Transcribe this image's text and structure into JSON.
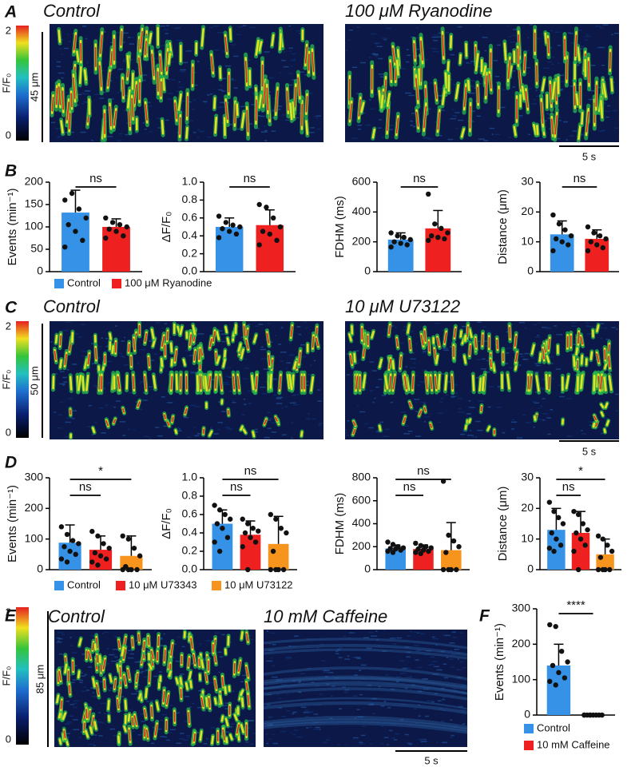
{
  "kymographs": [
    {
      "panel": "A",
      "titles": [
        "Control",
        "100 μM Ryanodine"
      ],
      "colorbar_label": "F/F₀",
      "clim": [
        0,
        2
      ],
      "colorbar_ticks": [
        0,
        2
      ],
      "length_scale": "45 μm",
      "time_scale": "5 s"
    },
    {
      "panel": "C",
      "titles": [
        "Control",
        "10 μM U73122"
      ],
      "colorbar_label": "F/F₀",
      "clim": [
        0,
        2
      ],
      "colorbar_ticks": [
        0,
        2
      ],
      "length_scale": "50 μm",
      "time_scale": "5 s"
    },
    {
      "panel": "E",
      "titles": [
        "Control",
        "10 mM Caffeine"
      ],
      "colorbar_label": "F/F₀",
      "clim": [
        0,
        2
      ],
      "colorbar_ticks": [
        0,
        2
      ],
      "length_scale": "85 μm",
      "time_scale": "5 s"
    }
  ],
  "chart_data": [
    {
      "type": "bar",
      "panel": "B",
      "series": [
        {
          "name": "Control",
          "color": "#3592e6",
          "values": [
            132,
            0.5,
            215,
            12.5
          ],
          "errors": [
            50,
            0.1,
            45,
            4.5
          ],
          "points": [
            [
              160,
              175,
              140,
              120,
              105,
              90,
              70,
              55
            ],
            [
              0.62,
              0.55,
              0.52,
              0.5,
              0.48,
              0.45,
              0.42,
              0.38
            ],
            [
              260,
              240,
              230,
              215,
              200,
              190,
              180,
              165
            ],
            [
              19,
              16,
              14,
              12,
              11,
              10,
              9,
              7
            ]
          ]
        },
        {
          "name": "100 μM Ryanodine",
          "color": "#ee2020",
          "values": [
            100,
            0.52,
            290,
            11
          ],
          "errors": [
            18,
            0.17,
            120,
            3
          ],
          "points": [
            [
              120,
              110,
              105,
              100,
              95,
              90,
              80,
              75
            ],
            [
              0.75,
              0.72,
              0.6,
              0.5,
              0.45,
              0.42,
              0.35,
              0.3
            ],
            [
              520,
              320,
              290,
              260,
              240,
              230,
              220,
              210
            ],
            [
              15,
              13,
              12,
              11,
              10,
              9,
              8,
              7
            ]
          ]
        }
      ],
      "panels": [
        {
          "ylabel": "Events (min⁻¹)",
          "ylim": [
            0,
            200
          ],
          "yticks": [
            0,
            50,
            100,
            150,
            200
          ],
          "significance": [
            "ns"
          ]
        },
        {
          "ylabel": "ΔF/F₀",
          "ylim": [
            0,
            1
          ],
          "yticks": [
            {
              "value": 0,
              "label": "0.0"
            },
            {
              "value": 0.2,
              "label": "0.2"
            },
            {
              "value": 0.4,
              "label": "0.4"
            },
            {
              "value": 0.6,
              "label": "0.6"
            },
            {
              "value": 0.8,
              "label": "0.8"
            },
            {
              "value": 1,
              "label": "1.0"
            }
          ],
          "significance": [
            "ns"
          ]
        },
        {
          "ylabel": "FDHM (ms)",
          "ylim": [
            0,
            600
          ],
          "yticks": [
            0,
            200,
            400,
            600
          ],
          "significance": [
            "ns"
          ]
        },
        {
          "ylabel": "Distance (μm)",
          "ylim": [
            0,
            30
          ],
          "yticks": [
            0,
            10,
            20,
            30
          ],
          "significance": [
            "ns"
          ]
        }
      ]
    },
    {
      "type": "bar",
      "panel": "D",
      "series": [
        {
          "name": "Control",
          "color": "#3592e6",
          "values": [
            88,
            0.5,
            185,
            13
          ],
          "errors": [
            58,
            0.15,
            30,
            7
          ],
          "points": [
            [
              140,
              115,
              95,
              85,
              75,
              60,
              50,
              35,
              25
            ],
            [
              0.7,
              0.65,
              0.6,
              0.55,
              0.5,
              0.45,
              0.35,
              0.3,
              0.2
            ],
            [
              240,
              220,
              200,
              190,
              185,
              180,
              170,
              160,
              150
            ],
            [
              22,
              19,
              17,
              15,
              12,
              10,
              8,
              7,
              6
            ]
          ]
        },
        {
          "name": "10 μM U73343",
          "color": "#ee2020",
          "values": [
            65,
            0.38,
            180,
            12
          ],
          "errors": [
            45,
            0.15,
            35,
            7
          ],
          "points": [
            [
              125,
              110,
              85,
              70,
              55,
              45,
              35,
              25,
              15
            ],
            [
              0.55,
              0.5,
              0.45,
              0.42,
              0.4,
              0.35,
              0.3,
              0.25,
              0
            ],
            [
              230,
              210,
              200,
              190,
              180,
              170,
              160,
              150,
              140
            ],
            [
              19,
              18,
              15,
              13,
              12,
              10,
              8,
              6,
              0
            ]
          ]
        },
        {
          "name": "10 μM U73122",
          "color": "#f7941d",
          "values": [
            45,
            0.28,
            170,
            5
          ],
          "errors": [
            65,
            0.3,
            240,
            5
          ],
          "points": [
            [
              110,
              100,
              70,
              45,
              10,
              0,
              0,
              0,
              0
            ],
            [
              0.6,
              0.55,
              0.45,
              0.4,
              0.2,
              0,
              0,
              0,
              0
            ],
            [
              770,
              300,
              250,
              200,
              150,
              0,
              0,
              0,
              0
            ],
            [
              11,
              10,
              8,
              6,
              4,
              0,
              0,
              0,
              0
            ]
          ]
        }
      ],
      "panels": [
        {
          "ylabel": "Events (min⁻¹)",
          "ylim": [
            0,
            300
          ],
          "yticks": [
            0,
            100,
            200,
            300
          ],
          "significance": [
            "ns",
            "*"
          ]
        },
        {
          "ylabel": "ΔF/F₀",
          "ylim": [
            0,
            1
          ],
          "yticks": [
            {
              "value": 0,
              "label": "0.0"
            },
            {
              "value": 0.2,
              "label": "0.2"
            },
            {
              "value": 0.4,
              "label": "0.4"
            },
            {
              "value": 0.6,
              "label": "0.6"
            },
            {
              "value": 0.8,
              "label": "0.8"
            },
            {
              "value": 1,
              "label": "1.0"
            }
          ],
          "significance": [
            "ns",
            "ns"
          ]
        },
        {
          "ylabel": "FDHM (ms)",
          "ylim": [
            0,
            800
          ],
          "yticks": [
            0,
            200,
            400,
            600,
            800
          ],
          "significance": [
            "ns",
            "ns"
          ]
        },
        {
          "ylabel": "Distance (μm)",
          "ylim": [
            0,
            30
          ],
          "yticks": [
            0,
            10,
            20,
            30
          ],
          "significance": [
            "ns",
            "*"
          ]
        }
      ]
    },
    {
      "type": "bar",
      "panel": "F",
      "series": [
        {
          "name": "Control",
          "color": "#3592e6",
          "values": [
            140
          ],
          "errors": [
            60
          ],
          "points": [
            [
              255,
              250,
              180,
              150,
              140,
              120,
              105,
              95,
              85
            ]
          ]
        },
        {
          "name": "10 mM Caffeine",
          "color": "#ee2020",
          "values": [
            0
          ],
          "errors": [
            0
          ],
          "points": [
            [
              0,
              0,
              0,
              0,
              0,
              0,
              0,
              0,
              0
            ]
          ]
        }
      ],
      "panels": [
        {
          "ylabel": "Events (min⁻¹)",
          "ylim": [
            0,
            300
          ],
          "yticks": [
            0,
            100,
            200,
            300
          ],
          "significance": [
            "****"
          ]
        }
      ]
    }
  ]
}
